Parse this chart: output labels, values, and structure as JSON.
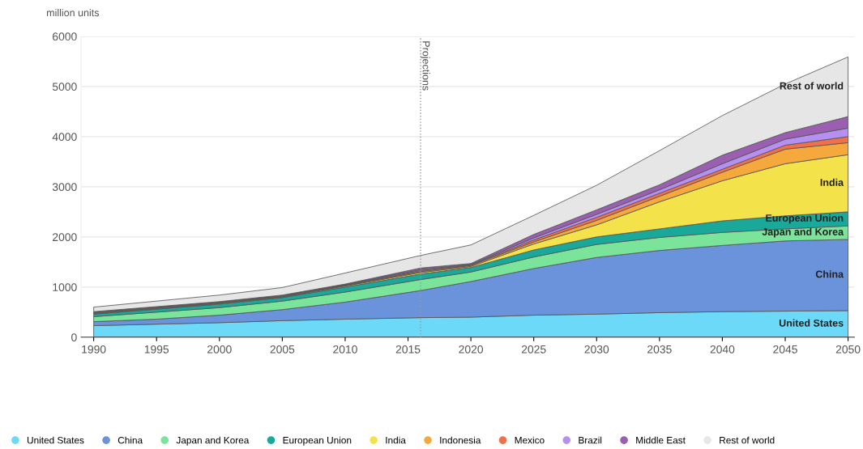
{
  "chart_data": {
    "type": "area",
    "stacked": true,
    "ylabel": "million units",
    "x": [
      1990,
      1995,
      2000,
      2005,
      2010,
      2016,
      2020,
      2025,
      2030,
      2035,
      2040,
      2045,
      2050
    ],
    "series": [
      {
        "name": "United States",
        "color": "#6dd9f8",
        "values": [
          230,
          260,
          290,
          330,
          360,
          390,
          400,
          440,
          460,
          490,
          510,
          520,
          530
        ]
      },
      {
        "name": "China",
        "color": "#6b93dc",
        "values": [
          80,
          100,
          150,
          220,
          340,
          540,
          710,
          930,
          1130,
          1240,
          1320,
          1400,
          1420
        ]
      },
      {
        "name": "Japan and Korea",
        "color": "#79e49a",
        "values": [
          100,
          140,
          150,
          170,
          200,
          220,
          190,
          230,
          260,
          260,
          260,
          240,
          270
        ]
      },
      {
        "name": "European Union",
        "color": "#1aa89a",
        "values": [
          50,
          60,
          70,
          70,
          100,
          110,
          90,
          140,
          150,
          170,
          230,
          260,
          280
        ]
      },
      {
        "name": "India",
        "color": "#f4e24a",
        "values": [
          10,
          10,
          10,
          10,
          20,
          30,
          20,
          120,
          240,
          540,
          800,
          1040,
          1140
        ]
      },
      {
        "name": "Indonesia",
        "color": "#f5a93c",
        "values": [
          10,
          10,
          10,
          10,
          10,
          20,
          20,
          40,
          90,
          110,
          170,
          290,
          240
        ]
      },
      {
        "name": "Mexico",
        "color": "#f0704a",
        "values": [
          10,
          10,
          10,
          10,
          10,
          20,
          10,
          40,
          60,
          60,
          60,
          80,
          120
        ]
      },
      {
        "name": "Brazil",
        "color": "#b590f0",
        "values": [
          10,
          10,
          10,
          10,
          10,
          20,
          10,
          40,
          60,
          70,
          110,
          120,
          170
        ]
      },
      {
        "name": "Middle East",
        "color": "#9a5fb0",
        "values": [
          10,
          10,
          10,
          10,
          10,
          30,
          20,
          70,
          90,
          100,
          170,
          130,
          230
        ]
      },
      {
        "name": "Rest of world",
        "color": "#e6e6e6",
        "values": [
          90,
          110,
          130,
          150,
          220,
          250,
          370,
          380,
          490,
          680,
          790,
          970,
          1190
        ]
      }
    ],
    "xlim": [
      1989,
      2050.5
    ],
    "xticks": [
      1990,
      1995,
      2000,
      2005,
      2010,
      2015,
      2020,
      2025,
      2030,
      2035,
      2040,
      2045,
      2050
    ],
    "ylim": [
      0,
      6000
    ],
    "yticks": [
      0,
      1000,
      2000,
      3000,
      4000,
      5000,
      6000
    ],
    "grid": "y",
    "legend": "bottom",
    "ref_lines": [
      {
        "axis": "x",
        "value": 2016,
        "label": "Projections",
        "color": "#999999",
        "line_style": "dotted"
      }
    ]
  }
}
